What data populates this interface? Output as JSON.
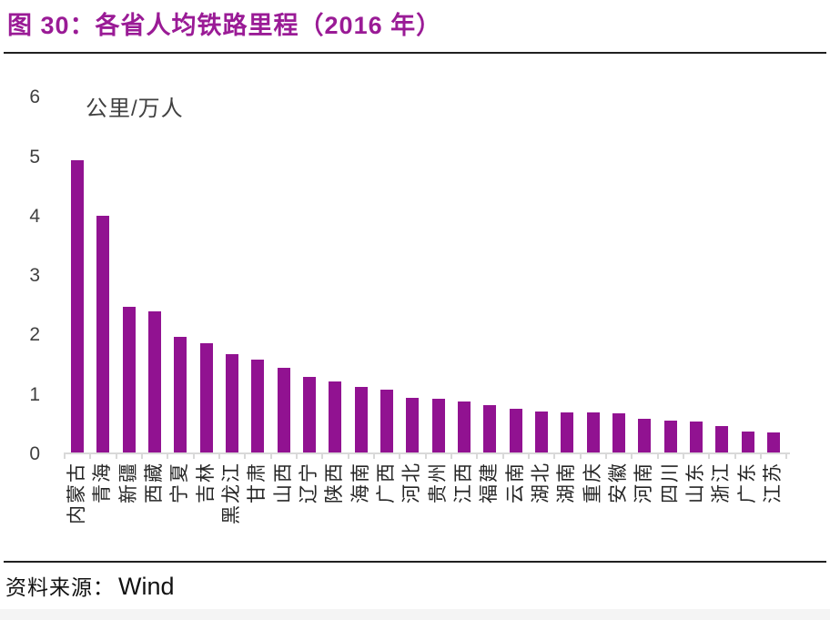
{
  "header": {
    "title": "图 30：各省人均铁路里程（2016 年）",
    "title_color": "#9A1B96"
  },
  "chart_data": {
    "type": "bar",
    "title": "各省人均铁路里程（2016 年）",
    "unit_label": "公里/万人",
    "categories": [
      "内蒙古",
      "青海",
      "新疆",
      "西藏",
      "宁夏",
      "吉林",
      "黑龙江",
      "甘肃",
      "山西",
      "辽宁",
      "陕西",
      "海南",
      "广西",
      "河北",
      "贵州",
      "江西",
      "福建",
      "云南",
      "湖北",
      "湖南",
      "重庆",
      "安徽",
      "河南",
      "四川",
      "山东",
      "浙江",
      "广东",
      "江苏"
    ],
    "values": [
      4.91,
      3.98,
      2.45,
      2.37,
      1.95,
      1.84,
      1.65,
      1.56,
      1.43,
      1.27,
      1.19,
      1.11,
      1.05,
      0.92,
      0.9,
      0.86,
      0.8,
      0.74,
      0.69,
      0.67,
      0.67,
      0.66,
      0.56,
      0.54,
      0.52,
      0.45,
      0.35,
      0.33
    ],
    "ylim": [
      0,
      6
    ],
    "yticks": [
      0,
      1,
      2,
      3,
      4,
      5,
      6
    ],
    "grid": false,
    "legend": false,
    "bar_color": "#911291",
    "axis_color": "#d9d9d9",
    "xlabel_rotation_deg": -90
  },
  "footer": {
    "source_label": "资料来源：",
    "source_value": "Wind"
  }
}
